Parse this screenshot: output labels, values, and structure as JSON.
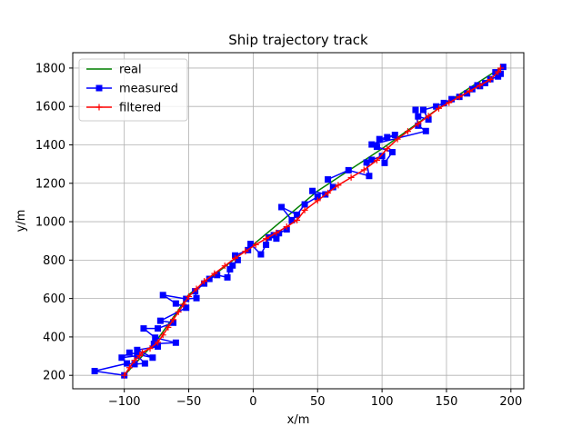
{
  "chart_data": {
    "type": "line",
    "title": "Ship trajectory track",
    "xlabel": "x/m",
    "ylabel": "y/m",
    "xlim": [
      -140,
      210
    ],
    "ylim": [
      130,
      1880
    ],
    "xticks": [
      -100,
      -50,
      0,
      50,
      100,
      150,
      200
    ],
    "yticks": [
      200,
      400,
      600,
      800,
      1000,
      1200,
      1400,
      1600,
      1800
    ],
    "grid": true,
    "legend_position": "top-left",
    "series": [
      {
        "name": "real",
        "color": "#008000",
        "marker": "none",
        "points": [
          [
            -100,
            200
          ],
          [
            -75,
            380
          ],
          [
            -60,
            520
          ],
          [
            -50,
            620
          ],
          [
            0,
            880
          ],
          [
            50,
            1160
          ],
          [
            100,
            1380
          ],
          [
            150,
            1620
          ],
          [
            192,
            1800
          ]
        ]
      },
      {
        "name": "measured",
        "color": "#0000ff",
        "marker": "square",
        "points": [
          [
            -100,
            200
          ],
          [
            -123,
            222
          ],
          [
            -98,
            262
          ],
          [
            -92,
            258
          ],
          [
            -84,
            262
          ],
          [
            -90,
            302
          ],
          [
            -102,
            292
          ],
          [
            -96,
            318
          ],
          [
            -78,
            292
          ],
          [
            -90,
            332
          ],
          [
            -74,
            350
          ],
          [
            -77,
            364
          ],
          [
            -60,
            370
          ],
          [
            -76,
            396
          ],
          [
            -85,
            444
          ],
          [
            -74,
            444
          ],
          [
            -62,
            474
          ],
          [
            -72,
            484
          ],
          [
            -52,
            552
          ],
          [
            -60,
            574
          ],
          [
            -70,
            618
          ],
          [
            -52,
            598
          ],
          [
            -44,
            602
          ],
          [
            -45,
            638
          ],
          [
            -38,
            678
          ],
          [
            -34,
            702
          ],
          [
            -28,
            722
          ],
          [
            -20,
            710
          ],
          [
            -18,
            752
          ],
          [
            -16,
            772
          ],
          [
            -12,
            800
          ],
          [
            -14,
            824
          ],
          [
            -4,
            852
          ],
          [
            -2,
            884
          ],
          [
            6,
            830
          ],
          [
            10,
            880
          ],
          [
            12,
            918
          ],
          [
            16,
            930
          ],
          [
            18,
            912
          ],
          [
            20,
            940
          ],
          [
            26,
            960
          ],
          [
            30,
            1008
          ],
          [
            22,
            1076
          ],
          [
            34,
            1036
          ],
          [
            40,
            1090
          ],
          [
            50,
            1130
          ],
          [
            46,
            1160
          ],
          [
            56,
            1142
          ],
          [
            62,
            1180
          ],
          [
            58,
            1220
          ],
          [
            74,
            1268
          ],
          [
            90,
            1238
          ],
          [
            88,
            1308
          ],
          [
            92,
            1322
          ],
          [
            100,
            1342
          ],
          [
            102,
            1306
          ],
          [
            108,
            1362
          ],
          [
            96,
            1390
          ],
          [
            98,
            1430
          ],
          [
            104,
            1440
          ],
          [
            110,
            1452
          ],
          [
            92,
            1402
          ],
          [
            134,
            1472
          ],
          [
            128,
            1500
          ],
          [
            126,
            1582
          ],
          [
            128,
            1548
          ],
          [
            136,
            1532
          ],
          [
            132,
            1582
          ],
          [
            142,
            1600
          ],
          [
            148,
            1618
          ],
          [
            154,
            1638
          ],
          [
            160,
            1650
          ],
          [
            166,
            1668
          ],
          [
            170,
            1690
          ],
          [
            174,
            1710
          ],
          [
            180,
            1722
          ],
          [
            176,
            1706
          ],
          [
            184,
            1742
          ],
          [
            190,
            1756
          ],
          [
            192,
            1770
          ],
          [
            188,
            1778
          ],
          [
            194,
            1806
          ]
        ]
      },
      {
        "name": "filtered",
        "color": "#ff0000",
        "marker": "plus",
        "points": [
          [
            -100,
            200
          ],
          [
            -96,
            240
          ],
          [
            -92,
            278
          ],
          [
            -88,
            302
          ],
          [
            -86,
            320
          ],
          [
            -80,
            340
          ],
          [
            -74,
            372
          ],
          [
            -70,
            410
          ],
          [
            -66,
            450
          ],
          [
            -62,
            490
          ],
          [
            -58,
            530
          ],
          [
            -54,
            570
          ],
          [
            -50,
            610
          ],
          [
            -44,
            650
          ],
          [
            -38,
            690
          ],
          [
            -30,
            730
          ],
          [
            -22,
            770
          ],
          [
            -14,
            810
          ],
          [
            -6,
            846
          ],
          [
            2,
            880
          ],
          [
            10,
            912
          ],
          [
            18,
            942
          ],
          [
            26,
            974
          ],
          [
            34,
            1008
          ],
          [
            40,
            1060
          ],
          [
            50,
            1110
          ],
          [
            58,
            1150
          ],
          [
            66,
            1190
          ],
          [
            76,
            1230
          ],
          [
            86,
            1270
          ],
          [
            96,
            1320
          ],
          [
            104,
            1380
          ],
          [
            112,
            1430
          ],
          [
            120,
            1470
          ],
          [
            128,
            1510
          ],
          [
            136,
            1550
          ],
          [
            144,
            1590
          ],
          [
            152,
            1620
          ],
          [
            160,
            1650
          ],
          [
            168,
            1680
          ],
          [
            176,
            1710
          ],
          [
            184,
            1740
          ],
          [
            190,
            1780
          ],
          [
            192,
            1800
          ]
        ]
      }
    ]
  }
}
